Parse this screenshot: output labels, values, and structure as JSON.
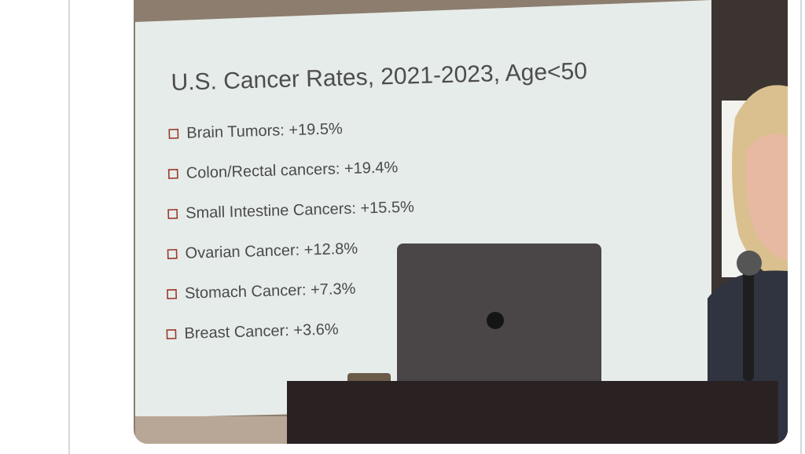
{
  "slide": {
    "title": "U.S. Cancer Rates, 2021-2023, Age<50",
    "items": [
      "Brain Tumors: +19.5%",
      "Colon/Rectal cancers: +19.4%",
      "Small Intestine Cancers: +15.5%",
      "Ovarian Cancer: +12.8%",
      "Stomach Cancer: +7.3%",
      "Breast Cancer: +3.6%"
    ]
  }
}
